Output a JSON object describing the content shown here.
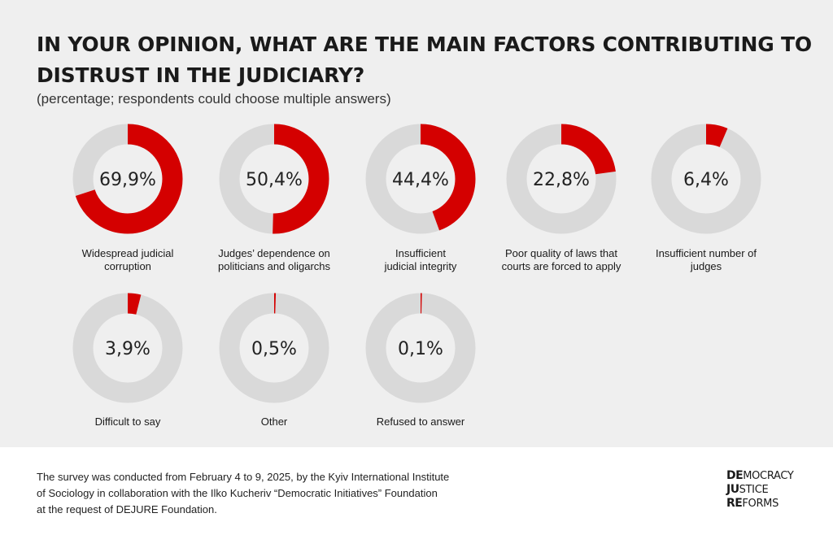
{
  "title": "IN YOUR OPINION, WHAT ARE THE MAIN FACTORS CONTRIBUTING TO DISTRUST IN THE JUDICIARY?",
  "subtitle": "(percentage; respondents could choose multiple answers)",
  "colors": {
    "filled": "#d40000",
    "track": "#d9d9d9",
    "background": "#efefef"
  },
  "chart_data": {
    "type": "donut",
    "title": "IN YOUR OPINION, WHAT ARE THE MAIN FACTORS CONTRIBUTING TO DISTRUST IN THE JUDICIARY?",
    "subtitle": "(percentage; respondents could choose multiple answers)",
    "unit": "%",
    "max": 100,
    "items": [
      {
        "label_lines": [
          "Widespread judicial",
          "corruption"
        ],
        "value": 69.9,
        "display": "69,9%"
      },
      {
        "label_lines": [
          "Judges’ dependence on",
          "politicians and oligarchs"
        ],
        "value": 50.4,
        "display": "50,4%"
      },
      {
        "label_lines": [
          "Insufficient",
          "judicial integrity"
        ],
        "value": 44.4,
        "display": "44,4%"
      },
      {
        "label_lines": [
          "Poor quality of laws that",
          "courts are forced to apply"
        ],
        "value": 22.8,
        "display": "22,8%"
      },
      {
        "label_lines": [
          "Insufficient number of",
          "judges"
        ],
        "value": 6.4,
        "display": "6,4%"
      },
      {
        "label_lines": [
          "Difficult to say"
        ],
        "value": 3.9,
        "display": "3,9%"
      },
      {
        "label_lines": [
          "Other"
        ],
        "value": 0.5,
        "display": "0,5%"
      },
      {
        "label_lines": [
          "Refused to answer"
        ],
        "value": 0.1,
        "display": "0,1%"
      }
    ]
  },
  "footer": {
    "note_lines": [
      "The survey was conducted from February 4 to 9, 2025, by the Kyiv International Institute",
      "of Sociology in collaboration with the Ilko Kucheriv “Democratic Initiatives” Foundation",
      "at the request of DEJURE Foundation."
    ],
    "logo": [
      {
        "bold": "DE",
        "rest": "MOCRACY"
      },
      {
        "bold": "JU",
        "rest": "STICE"
      },
      {
        "bold": "RE",
        "rest": "FORMS"
      }
    ]
  }
}
